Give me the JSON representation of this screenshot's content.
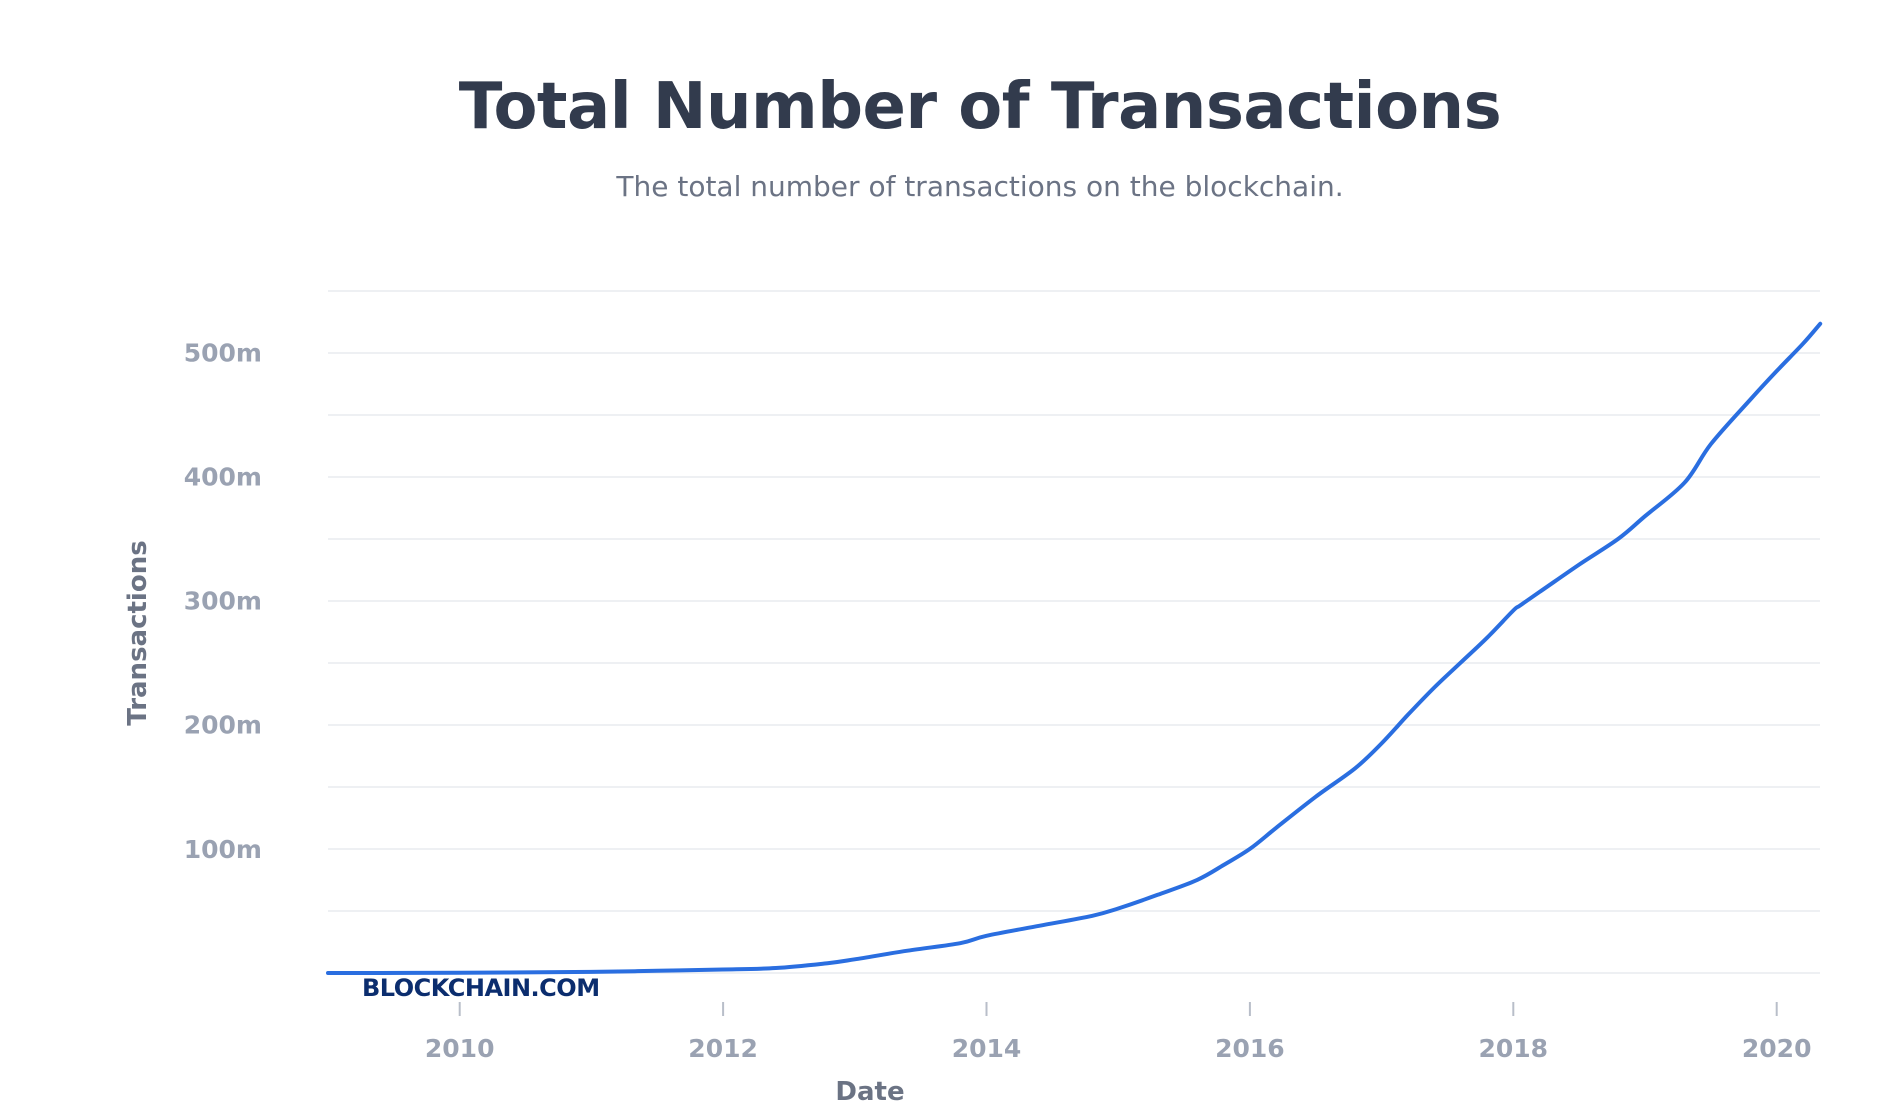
{
  "header": {
    "title": "Total Number of Transactions",
    "subtitle": "The total number of transactions on the blockchain."
  },
  "watermark": "BLOCKCHAIN.COM",
  "colors": {
    "line": "#2a6ee0",
    "grid": "#e9ebef",
    "tick_label": "#9aa2b2",
    "axis_title": "#6b7384",
    "title": "#323b4d",
    "watermark": "#0b2d6e"
  },
  "chart_data": {
    "type": "line",
    "title": "Total Number of Transactions",
    "subtitle": "The total number of transactions on the blockchain.",
    "xlabel": "Date",
    "ylabel": "Transactions",
    "x_ticks": [
      "2010",
      "2012",
      "2014",
      "2016",
      "2018",
      "2020"
    ],
    "y_ticks": [
      {
        "value": 100,
        "label": "100m"
      },
      {
        "value": 200,
        "label": "200m"
      },
      {
        "value": 300,
        "label": "300m"
      },
      {
        "value": 400,
        "label": "400m"
      },
      {
        "value": 500,
        "label": "500m"
      }
    ],
    "y_unit": "millions",
    "xlim": [
      2009.0,
      2020.33
    ],
    "ylim": [
      0,
      550
    ],
    "grid": true,
    "legend": "none",
    "series": [
      {
        "x": [
          2009.0,
          2010.0,
          2011.0,
          2011.5,
          2012.0,
          2012.4,
          2012.8,
          2013.0,
          2013.4,
          2013.8,
          2014.0,
          2014.4,
          2014.8,
          2015.0,
          2015.3,
          2015.6,
          2015.8,
          2016.0,
          2016.2,
          2016.5,
          2016.8,
          2017.0,
          2017.2,
          2017.4,
          2017.6,
          2017.8,
          2018.0,
          2018.05,
          2018.2,
          2018.5,
          2018.8,
          2019.0,
          2019.3,
          2019.5,
          2019.8,
          2020.0,
          2020.2,
          2020.33
        ],
        "y": [
          0.03,
          0.15,
          0.9,
          1.8,
          2.8,
          4.0,
          8.0,
          11.0,
          18.0,
          24.0,
          30.0,
          38.0,
          46.0,
          52.0,
          63.0,
          75.0,
          87.0,
          100.0,
          117.0,
          142.0,
          165.0,
          185.0,
          208.0,
          230.0,
          250.0,
          270.0,
          292.0,
          296.0,
          307.0,
          329.0,
          350.0,
          368.0,
          395.0,
          426.0,
          462.0,
          485.0,
          507.0,
          523.0
        ]
      }
    ]
  }
}
